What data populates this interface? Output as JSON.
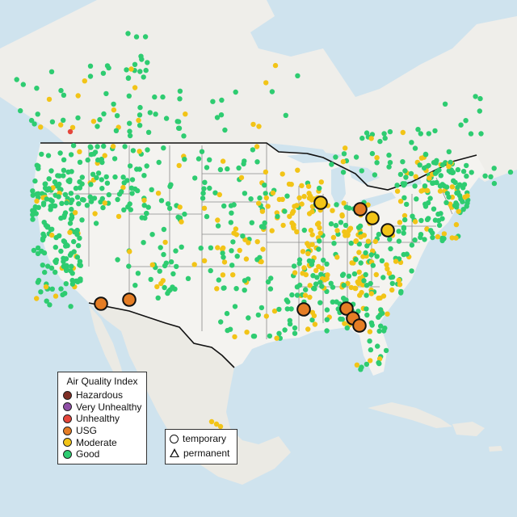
{
  "colors": {
    "water": "#cfe3ee",
    "land": "#f2f1ee",
    "land_outside": "#ecebe6",
    "border": "#111111",
    "state_line": "#8a8a8a",
    "hazardous": "#7e2f26",
    "very_unhealthy": "#8f4fa6",
    "unhealthy": "#e5463b",
    "usg": "#e57d25",
    "moderate": "#f2c417",
    "good": "#2ecc71"
  },
  "legend_aqi": {
    "title": "Air Quality Index",
    "items": [
      {
        "label": "Hazardous",
        "color": "#7e2f26"
      },
      {
        "label": "Very Unhealthy",
        "color": "#8f4fa6"
      },
      {
        "label": "Unhealthy",
        "color": "#e5463b"
      },
      {
        "label": "USG",
        "color": "#e57d25"
      },
      {
        "label": "Moderate",
        "color": "#f2c417"
      },
      {
        "label": "Good",
        "color": "#2ecc71"
      }
    ]
  },
  "legend_type": {
    "items": [
      {
        "label": "temporary",
        "shape": "circle"
      },
      {
        "label": "permanent",
        "shape": "triangle"
      }
    ]
  }
}
